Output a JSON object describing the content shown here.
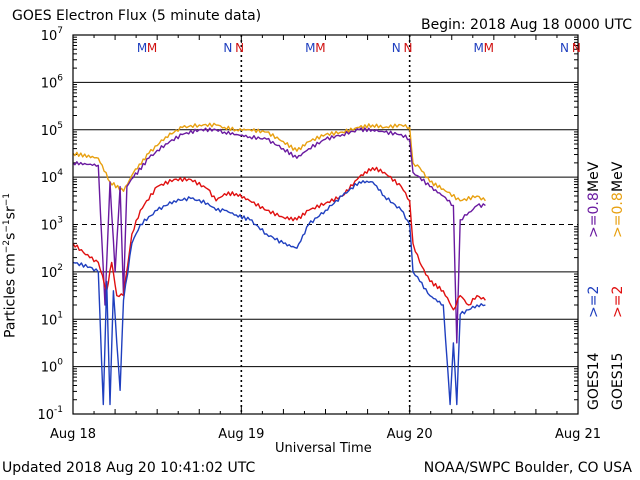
{
  "header": {
    "title": "GOES Electron Flux (5 minute data)",
    "begin": "Begin: 2018 Aug 18 0000 UTC"
  },
  "footer": {
    "updated": "Updated 2018 Aug 20 10:41:02 UTC",
    "source": "NOAA/SWPC Boulder, CO USA"
  },
  "axis": {
    "ylabel_main": "Particles cm",
    "xlabel": "Universal Time"
  },
  "legend": {
    "goes14": {
      "sat": "GOES14",
      "ch1": ">=2",
      "ch2": ">=0.8",
      "unit": "MeV"
    },
    "goes15": {
      "sat": "GOES15",
      "ch1": ">=2",
      "ch2": ">=0.8",
      "unit": "MeV"
    }
  },
  "chart_data": {
    "type": "line",
    "title": "GOES Electron Flux (5 minute data)",
    "xlabel": "Universal Time",
    "ylabel": "Particles cm^-2 s^-1 sr^-1",
    "xlim": [
      0,
      3
    ],
    "ylim_log10": [
      -1,
      7
    ],
    "x_ticks": [
      "Aug 18",
      "Aug 19",
      "Aug 20",
      "Aug 21"
    ],
    "y_ticks": [
      {
        "base": "10",
        "exp": "7"
      },
      {
        "base": "10",
        "exp": "6"
      },
      {
        "base": "10",
        "exp": "5"
      },
      {
        "base": "10",
        "exp": "4"
      },
      {
        "base": "10",
        "exp": "3"
      },
      {
        "base": "10",
        "exp": "2"
      },
      {
        "base": "10",
        "exp": "1"
      },
      {
        "base": "10",
        "exp": "0"
      },
      {
        "base": "10",
        "exp": "-1"
      }
    ],
    "threshold_log10": 3,
    "markers": [
      {
        "label": "M",
        "day": 0.41,
        "color": "#1f3fbf"
      },
      {
        "label": "M",
        "day": 0.47,
        "color": "#d01010"
      },
      {
        "label": "N",
        "day": 0.92,
        "color": "#1f3fbf"
      },
      {
        "label": "N",
        "day": 0.99,
        "color": "#d01010"
      },
      {
        "label": "M",
        "day": 1.41,
        "color": "#1f3fbf"
      },
      {
        "label": "M",
        "day": 1.47,
        "color": "#d01010"
      },
      {
        "label": "N",
        "day": 1.92,
        "color": "#1f3fbf"
      },
      {
        "label": "N",
        "day": 1.99,
        "color": "#d01010"
      },
      {
        "label": "M",
        "day": 2.41,
        "color": "#1f3fbf"
      },
      {
        "label": "M",
        "day": 2.47,
        "color": "#d01010"
      },
      {
        "label": "N",
        "day": 2.92,
        "color": "#1f3fbf"
      },
      {
        "label": "N",
        "day": 2.99,
        "color": "#d01010"
      }
    ],
    "series": [
      {
        "name": "GOES15 >=0.8 MeV",
        "color": "#e8a010",
        "x": [
          0,
          0.15,
          0.22,
          0.3,
          0.36,
          0.45,
          0.55,
          0.65,
          0.75,
          0.85,
          0.9,
          0.97,
          1.05,
          1.15,
          1.25,
          1.33,
          1.4,
          1.5,
          1.6,
          1.7,
          1.78,
          1.85,
          1.95,
          2.0,
          2.02,
          2.06,
          2.12,
          2.2,
          2.3,
          2.4,
          2.45
        ],
        "y": [
          4.5,
          4.4,
          3.9,
          3.7,
          4.1,
          4.5,
          4.85,
          5.05,
          5.1,
          5.1,
          5.05,
          5.0,
          5.0,
          4.95,
          4.75,
          4.55,
          4.75,
          4.9,
          4.95,
          5.05,
          5.1,
          5.05,
          5.1,
          5.05,
          4.3,
          4.2,
          3.9,
          3.75,
          3.5,
          3.6,
          3.5
        ]
      },
      {
        "name": "GOES14 >=0.8 MeV",
        "color": "#6a1aa0",
        "x": [
          0,
          0.15,
          0.19,
          0.22,
          0.25,
          0.28,
          0.3,
          0.32,
          0.36,
          0.45,
          0.55,
          0.65,
          0.75,
          0.85,
          0.9,
          0.97,
          1.05,
          1.15,
          1.25,
          1.33,
          1.4,
          1.5,
          1.6,
          1.7,
          1.78,
          1.85,
          1.95,
          2.0,
          2.02,
          2.06,
          2.12,
          2.2,
          2.26,
          2.28,
          2.3,
          2.34,
          2.4,
          2.45
        ],
        "y": [
          4.3,
          4.25,
          1.3,
          3.9,
          2.0,
          3.8,
          1.5,
          3.8,
          4.0,
          4.4,
          4.7,
          4.9,
          5.0,
          5.0,
          4.95,
          4.9,
          4.85,
          4.8,
          4.6,
          4.4,
          4.6,
          4.8,
          4.9,
          5.0,
          5.0,
          4.95,
          4.9,
          4.8,
          4.1,
          4.0,
          3.8,
          3.6,
          3.4,
          0.5,
          3.1,
          3.2,
          3.4,
          3.4
        ]
      },
      {
        "name": "GOES15 >=2 MeV",
        "color": "#e01010",
        "x": [
          0,
          0.1,
          0.15,
          0.2,
          0.23,
          0.26,
          0.3,
          0.35,
          0.4,
          0.5,
          0.6,
          0.7,
          0.8,
          0.85,
          0.9,
          0.97,
          1.05,
          1.15,
          1.25,
          1.33,
          1.4,
          1.5,
          1.6,
          1.7,
          1.78,
          1.85,
          1.95,
          2.0,
          2.02,
          2.06,
          2.12,
          2.2,
          2.26,
          2.3,
          2.35,
          2.4,
          2.45
        ],
        "y": [
          2.6,
          2.3,
          2.2,
          1.6,
          2.2,
          1.5,
          1.5,
          2.8,
          3.3,
          3.8,
          3.95,
          3.95,
          3.75,
          3.5,
          3.65,
          3.65,
          3.5,
          3.3,
          3.15,
          3.1,
          3.3,
          3.45,
          3.6,
          4.0,
          4.2,
          4.1,
          3.8,
          3.5,
          2.6,
          2.2,
          1.8,
          1.6,
          1.2,
          1.5,
          1.3,
          1.5,
          1.4
        ]
      },
      {
        "name": "GOES14 >=2 MeV",
        "color": "#1f3fbf",
        "x": [
          0,
          0.1,
          0.15,
          0.18,
          0.2,
          0.22,
          0.24,
          0.26,
          0.28,
          0.3,
          0.35,
          0.4,
          0.5,
          0.6,
          0.7,
          0.8,
          0.85,
          0.9,
          0.97,
          1.05,
          1.15,
          1.25,
          1.33,
          1.4,
          1.5,
          1.6,
          1.7,
          1.78,
          1.85,
          1.95,
          2.0,
          2.02,
          2.06,
          2.12,
          2.2,
          2.24,
          2.26,
          2.28,
          2.3,
          2.35,
          2.4,
          2.45
        ],
        "y": [
          2.2,
          2.1,
          2.0,
          -0.8,
          1.8,
          -0.8,
          1.6,
          0.5,
          -0.5,
          1.4,
          2.6,
          3.0,
          3.3,
          3.5,
          3.55,
          3.45,
          3.3,
          3.3,
          3.2,
          3.1,
          2.8,
          2.6,
          2.5,
          3.0,
          3.3,
          3.6,
          3.9,
          3.9,
          3.6,
          3.3,
          3.0,
          2.0,
          1.8,
          1.5,
          1.3,
          -0.8,
          0.5,
          -0.8,
          1.1,
          1.2,
          1.3,
          1.3
        ]
      }
    ]
  }
}
